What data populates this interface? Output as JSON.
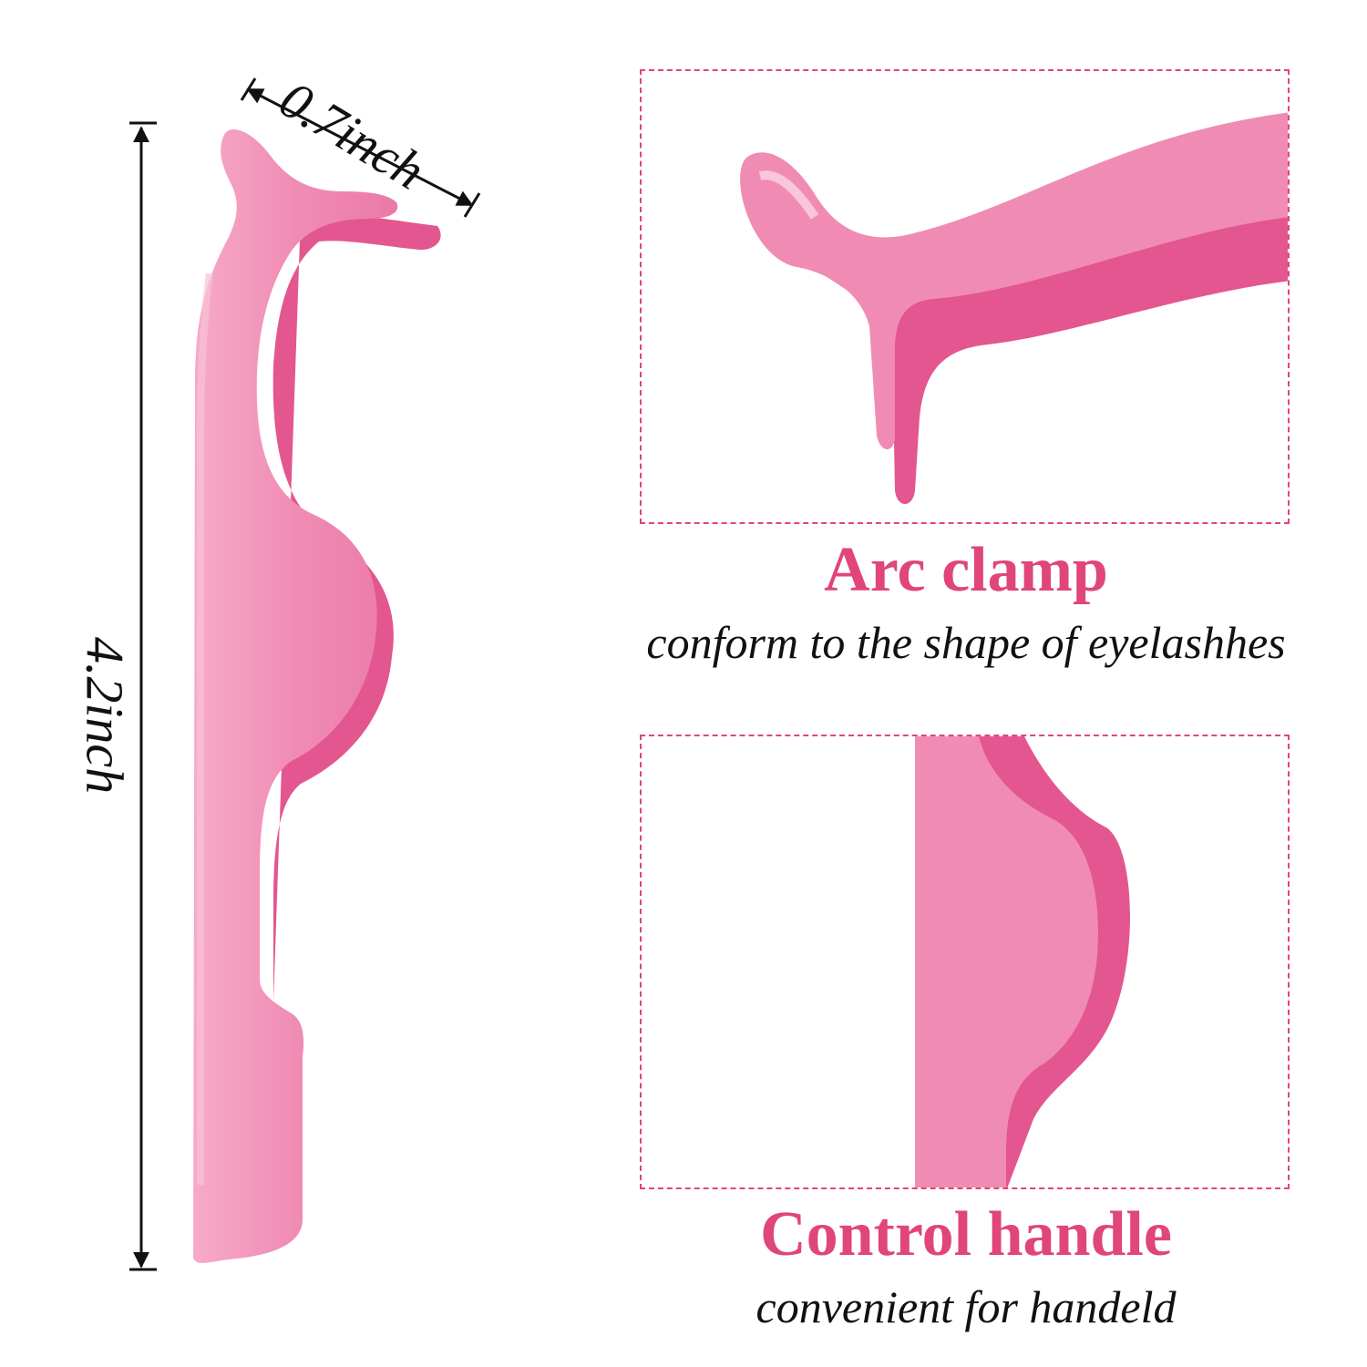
{
  "product": {
    "name": "pink-eyelash-applicator-tweezer",
    "colors": {
      "body": "#f08cb4",
      "shadow": "#e4568f",
      "highlight": "#f7b6cf",
      "accent": "#e0457b",
      "text": "#111111"
    }
  },
  "dimensions": {
    "width_label": "0.7inch",
    "height_label": "4.2inch"
  },
  "features": [
    {
      "title": "Arc clamp",
      "description": "conform to the shape of eyelashhes"
    },
    {
      "title": "Control handle",
      "description": "convenient for handeld"
    }
  ]
}
